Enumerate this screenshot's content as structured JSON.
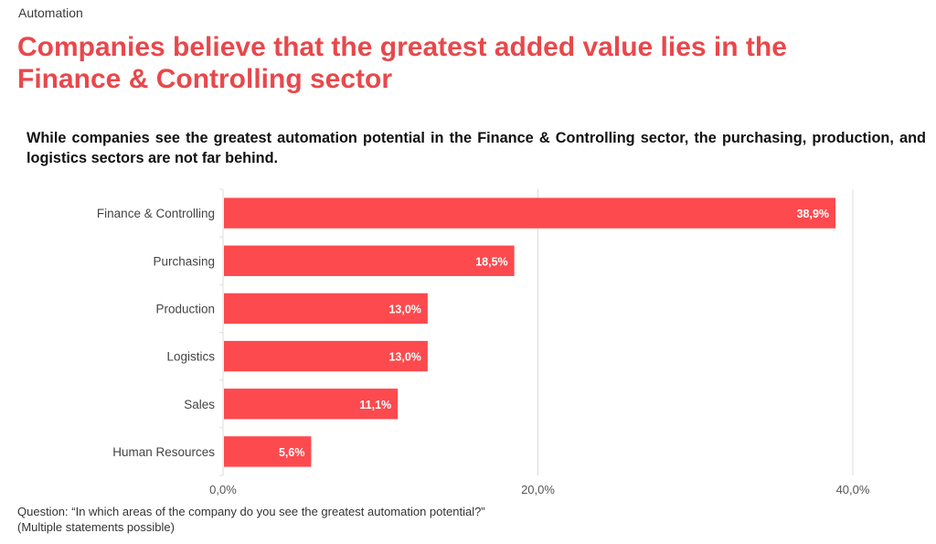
{
  "header": {
    "section": "Automation",
    "title": "Companies believe that the greatest added value lies in the Finance & Controlling sector",
    "subtitle": "While companies see the greatest automation potential in the Finance & Controlling sector, the purchasing, production, and logistics sectors are not far behind."
  },
  "footer": {
    "question": "Question: “In which areas of the company do you see the greatest automation potential?”",
    "note": "(Multiple statements possible)"
  },
  "colors": {
    "accent": "#e8484b",
    "bar": "#fc4a4e",
    "grid": "#dddddd"
  },
  "chart_data": {
    "type": "bar",
    "orientation": "horizontal",
    "title": "",
    "xlabel": "",
    "ylabel": "",
    "categories": [
      "Finance & Controlling",
      "Purchasing",
      "Production",
      "Logistics",
      "Sales",
      "Human Resources"
    ],
    "values": [
      38.9,
      18.5,
      13.0,
      13.0,
      11.1,
      5.6
    ],
    "value_labels": [
      "38,9%",
      "18,5%",
      "13,0%",
      "13,0%",
      "11,1%",
      "5,6%"
    ],
    "xlim": [
      0,
      40
    ],
    "ticks": [
      0,
      20,
      40
    ],
    "tick_labels": [
      "0,0%",
      "20,0%",
      "40,0%"
    ],
    "grid": true,
    "legend": "none"
  }
}
